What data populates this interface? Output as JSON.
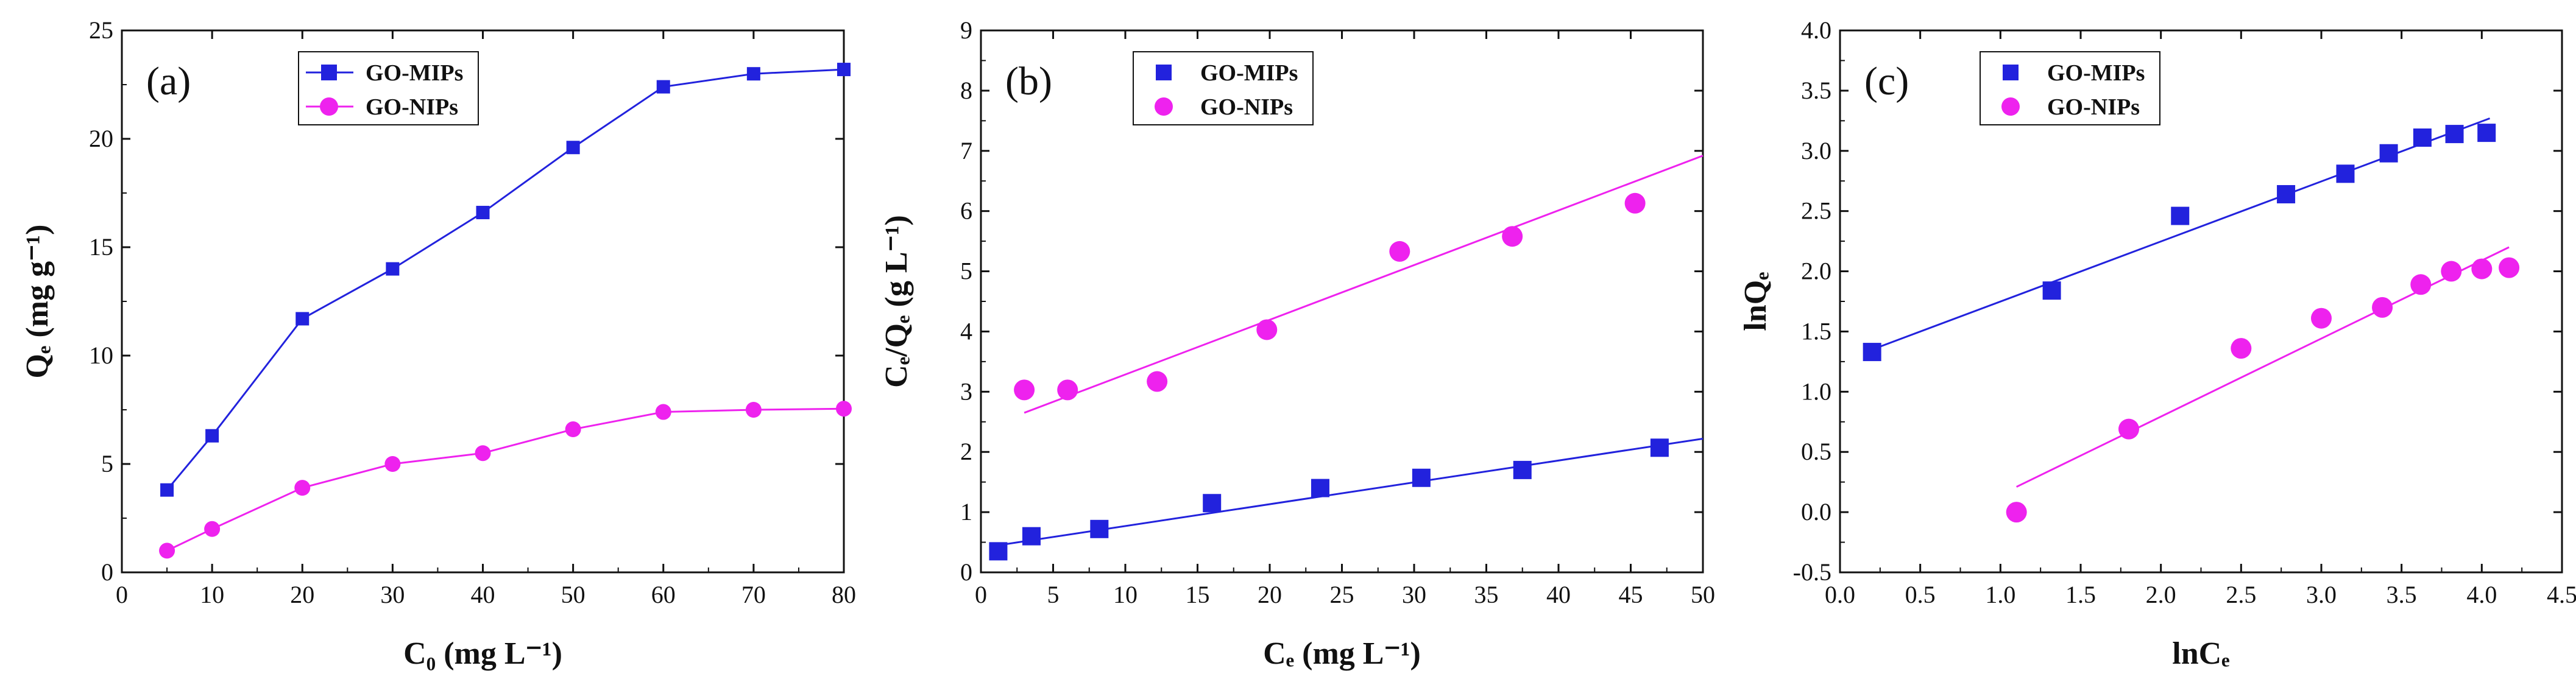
{
  "chart_data": [
    {
      "panel": "a",
      "type": "line",
      "panel_label": "(a)",
      "xlabel": "C₀ (mg L⁻¹)",
      "ylabel": "Qₑ (mg g⁻¹)",
      "xlim": [
        0,
        80
      ],
      "ylim": [
        0,
        25
      ],
      "xticks": [
        0,
        10,
        20,
        30,
        40,
        50,
        60,
        70,
        80
      ],
      "yticks": [
        0,
        5,
        10,
        15,
        20,
        25
      ],
      "legend_position": "top-center",
      "series": [
        {
          "name": "GO-MIPs",
          "color": "#2222dd",
          "marker": "square",
          "x": [
            5,
            10,
            20,
            30,
            40,
            50,
            60,
            70,
            80
          ],
          "y": [
            3.8,
            6.3,
            11.7,
            14.0,
            16.6,
            19.6,
            22.4,
            23.0,
            23.2
          ]
        },
        {
          "name": "GO-NIPs",
          "color": "#ee22ee",
          "marker": "circle",
          "x": [
            5,
            10,
            20,
            30,
            40,
            50,
            60,
            70,
            80
          ],
          "y": [
            1.0,
            2.0,
            3.9,
            5.0,
            5.5,
            6.6,
            7.4,
            7.5,
            7.55
          ]
        }
      ]
    },
    {
      "panel": "b",
      "type": "scatter",
      "panel_label": "(b)",
      "xlabel": "Cₑ (mg L⁻¹)",
      "ylabel": "Cₑ/Qₑ (g L⁻¹)",
      "xlim": [
        0,
        50
      ],
      "ylim": [
        0,
        9
      ],
      "xticks": [
        0,
        5,
        10,
        15,
        20,
        25,
        30,
        35,
        40,
        45,
        50
      ],
      "yticks": [
        0,
        1,
        2,
        3,
        4,
        5,
        6,
        7,
        8,
        9
      ],
      "legend_position": "top-left",
      "series": [
        {
          "name": "GO-MIPs",
          "color": "#2222dd",
          "marker": "square",
          "x": [
            1.2,
            3.5,
            8.2,
            16.0,
            23.5,
            30.5,
            37.5,
            47.0
          ],
          "y": [
            0.35,
            0.6,
            0.72,
            1.15,
            1.4,
            1.57,
            1.7,
            2.07
          ],
          "fit": {
            "x": [
              1.2,
              50
            ],
            "y": [
              0.45,
              2.22
            ]
          }
        },
        {
          "name": "GO-NIPs",
          "color": "#ee22ee",
          "marker": "circle",
          "x": [
            3.0,
            6.0,
            12.2,
            19.8,
            29.0,
            36.8,
            45.3
          ],
          "y": [
            3.03,
            3.03,
            3.17,
            4.03,
            5.33,
            5.58,
            6.13
          ],
          "fit": {
            "x": [
              3.0,
              50
            ],
            "y": [
              2.65,
              6.92
            ]
          }
        }
      ]
    },
    {
      "panel": "c",
      "type": "scatter",
      "panel_label": "(c)",
      "xlabel": "lnCₑ",
      "ylabel": "lnQₑ",
      "xlim": [
        0.0,
        4.5
      ],
      "ylim": [
        -0.5,
        4.0
      ],
      "xticks": [
        "0.0",
        "0.5",
        "1.0",
        "1.5",
        "2.0",
        "2.5",
        "3.0",
        "3.5",
        "4.0",
        "4.5"
      ],
      "yticks": [
        "-0.5",
        "0.0",
        "0.5",
        "1.0",
        "1.5",
        "2.0",
        "2.5",
        "3.0",
        "3.5",
        "4.0"
      ],
      "legend_position": "top-left",
      "series": [
        {
          "name": "GO-MIPs",
          "color": "#2222dd",
          "marker": "square",
          "x": [
            0.2,
            1.32,
            2.12,
            2.78,
            3.15,
            3.42,
            3.63,
            3.83,
            4.03
          ],
          "y": [
            1.33,
            1.84,
            2.46,
            2.64,
            2.81,
            2.98,
            3.11,
            3.14,
            3.15
          ],
          "fit": {
            "x": [
              0.2,
              4.05
            ],
            "y": [
              1.35,
              3.27
            ]
          }
        },
        {
          "name": "GO-NIPs",
          "color": "#ee22ee",
          "marker": "circle",
          "x": [
            1.1,
            1.8,
            2.5,
            3.0,
            3.38,
            3.62,
            3.81,
            4.0,
            4.17
          ],
          "y": [
            0.0,
            0.69,
            1.36,
            1.61,
            1.7,
            1.89,
            2.0,
            2.02,
            2.03
          ],
          "fit": {
            "x": [
              1.1,
              4.17
            ],
            "y": [
              0.21,
              2.2
            ]
          }
        }
      ]
    }
  ]
}
